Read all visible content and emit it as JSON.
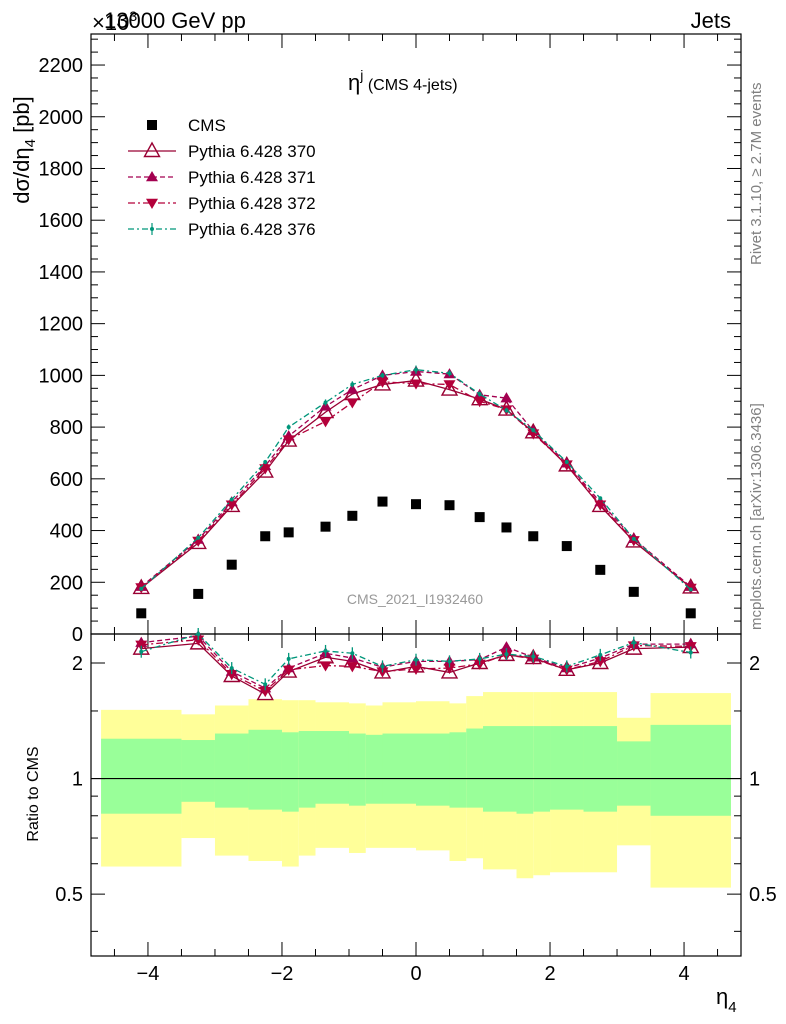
{
  "header": {
    "process": "13000 GeV pp",
    "channel": "Jets",
    "exponent": "×10",
    "exponent_power": "3"
  },
  "side_labels": {
    "rivet": "Rivet 3.1.10, ≥ 2.7M events",
    "mcplots": "mcplots.cern.ch [arXiv:1306.3436]"
  },
  "watermark": "CMS_2021_I1932460",
  "colors": {
    "cms": "#000000",
    "p370": "#990033",
    "p371": "#a30050",
    "p372": "#b3003a",
    "p376": "#00967a",
    "band_inner": "#99ff99",
    "band_outer": "#ffff99"
  },
  "chart_data": {
    "type": "line",
    "title_main": "η",
    "title_sup": "j",
    "title_rest": " (CMS 4-jets)",
    "ylabel": "dσ/dη",
    "ylabel_sub": "4",
    "ylabel_unit": " [pb]",
    "xlabel": "η",
    "xlabel_sub": "4",
    "ratio_ylabel": "Ratio to CMS",
    "xlim": [
      -4.85,
      4.85
    ],
    "ylim": [
      0,
      2320
    ],
    "ratio_ylim": [
      0.345,
      2.38
    ],
    "x_ticks": [
      -4,
      -2,
      0,
      2,
      4
    ],
    "x_tick_labels": [
      "−4",
      "−2",
      "0",
      "2",
      "4"
    ],
    "y_ticks": [
      0,
      200,
      400,
      600,
      800,
      1000,
      1200,
      1400,
      1600,
      1800,
      2000,
      2200
    ],
    "y_tick_labels": [
      "0",
      "200",
      "400",
      "600",
      "800",
      "1000",
      "1200",
      "1400",
      "1600",
      "1800",
      "2000",
      "2200"
    ],
    "ratio_ticks": [
      0.5,
      1,
      2
    ],
    "ratio_tick_labels": [
      "0.5",
      "1",
      "2"
    ],
    "bin_edges": [
      -4.7,
      -3.5,
      -3.0,
      -2.5,
      -2.0,
      -1.75,
      -1.5,
      -1.0,
      -0.75,
      -0.5,
      0.0,
      0.5,
      0.75,
      1.0,
      1.5,
      1.75,
      2.0,
      2.5,
      3.0,
      3.5,
      4.7
    ],
    "x": [
      -4.1,
      -3.25,
      -2.75,
      -2.25,
      -1.9,
      -1.35,
      -0.95,
      -0.5,
      0.0,
      0.5,
      0.95,
      1.35,
      1.75,
      2.25,
      2.75,
      3.25,
      4.1
    ],
    "series": [
      {
        "name": "CMS",
        "values": [
          80,
          155,
          268,
          378,
          393,
          415,
          457,
          512,
          502,
          498,
          452,
          412,
          378,
          340,
          248,
          163,
          80
        ]
      },
      {
        "name": "Pythia 6.428 370",
        "values": [
          178,
          352,
          495,
          628,
          748,
          858,
          928,
          965,
          980,
          945,
          908,
          868,
          780,
          652,
          495,
          358,
          180
        ]
      },
      {
        "name": "Pythia 6.428 371",
        "values": [
          183,
          365,
          510,
          650,
          765,
          880,
          945,
          1000,
          1015,
          1005,
          925,
          912,
          785,
          660,
          510,
          368,
          183
        ]
      },
      {
        "name": "Pythia 6.428 372",
        "values": [
          180,
          360,
          500,
          640,
          752,
          822,
          895,
          975,
          968,
          965,
          900,
          868,
          775,
          655,
          500,
          362,
          178
        ]
      },
      {
        "name": "Pythia 6.428 376",
        "values": [
          175,
          372,
          520,
          665,
          800,
          895,
          965,
          1000,
          1022,
          1008,
          928,
          865,
          788,
          665,
          525,
          368,
          172
        ]
      }
    ],
    "ratio_series": [
      {
        "name": "Pythia 6.428 370",
        "values": [
          2.18,
          2.25,
          1.85,
          1.66,
          1.9,
          2.07,
          2.02,
          1.89,
          1.96,
          1.89,
          2.0,
          2.1,
          2.06,
          1.92,
          2.0,
          2.18,
          2.2
        ]
      },
      {
        "name": "Pythia 6.428 371",
        "values": [
          2.26,
          2.35,
          1.9,
          1.72,
          1.94,
          2.12,
          2.06,
          1.95,
          2.02,
          2.02,
          2.04,
          2.2,
          2.07,
          1.94,
          2.06,
          2.24,
          2.24
        ]
      },
      {
        "name": "Pythia 6.428 372",
        "values": [
          2.23,
          2.3,
          1.87,
          1.69,
          1.92,
          1.97,
          1.96,
          1.9,
          1.93,
          1.94,
          1.99,
          2.1,
          2.05,
          1.92,
          2.02,
          2.22,
          2.21
        ]
      },
      {
        "name": "Pythia 6.428 376",
        "values": [
          2.14,
          2.38,
          1.94,
          1.76,
          2.05,
          2.15,
          2.12,
          1.96,
          2.04,
          2.02,
          2.05,
          2.11,
          2.08,
          1.96,
          2.1,
          2.26,
          2.13
        ]
      }
    ],
    "band_inner": [
      {
        "lo": 0.81,
        "hi": 1.27
      },
      {
        "lo": 0.87,
        "hi": 1.26
      },
      {
        "lo": 0.84,
        "hi": 1.31
      },
      {
        "lo": 0.83,
        "hi": 1.34
      },
      {
        "lo": 0.82,
        "hi": 1.32
      },
      {
        "lo": 0.84,
        "hi": 1.33
      },
      {
        "lo": 0.86,
        "hi": 1.33
      },
      {
        "lo": 0.85,
        "hi": 1.31
      },
      {
        "lo": 0.86,
        "hi": 1.3
      },
      {
        "lo": 0.86,
        "hi": 1.31
      },
      {
        "lo": 0.85,
        "hi": 1.31
      },
      {
        "lo": 0.84,
        "hi": 1.32
      },
      {
        "lo": 0.84,
        "hi": 1.35
      },
      {
        "lo": 0.82,
        "hi": 1.37
      },
      {
        "lo": 0.81,
        "hi": 1.37
      },
      {
        "lo": 0.82,
        "hi": 1.37
      },
      {
        "lo": 0.83,
        "hi": 1.37
      },
      {
        "lo": 0.82,
        "hi": 1.37
      },
      {
        "lo": 0.85,
        "hi": 1.25
      },
      {
        "lo": 0.8,
        "hi": 1.38
      }
    ],
    "band_outer": [
      {
        "lo": 0.59,
        "hi": 1.51
      },
      {
        "lo": 0.7,
        "hi": 1.47
      },
      {
        "lo": 0.63,
        "hi": 1.55
      },
      {
        "lo": 0.61,
        "hi": 1.61
      },
      {
        "lo": 0.59,
        "hi": 1.6
      },
      {
        "lo": 0.63,
        "hi": 1.6
      },
      {
        "lo": 0.66,
        "hi": 1.58
      },
      {
        "lo": 0.64,
        "hi": 1.57
      },
      {
        "lo": 0.66,
        "hi": 1.55
      },
      {
        "lo": 0.66,
        "hi": 1.58
      },
      {
        "lo": 0.65,
        "hi": 1.59
      },
      {
        "lo": 0.61,
        "hi": 1.57
      },
      {
        "lo": 0.62,
        "hi": 1.64
      },
      {
        "lo": 0.58,
        "hi": 1.68
      },
      {
        "lo": 0.55,
        "hi": 1.68
      },
      {
        "lo": 0.56,
        "hi": 1.68
      },
      {
        "lo": 0.57,
        "hi": 1.68
      },
      {
        "lo": 0.57,
        "hi": 1.68
      },
      {
        "lo": 0.67,
        "hi": 1.44
      },
      {
        "lo": 0.52,
        "hi": 1.67
      }
    ],
    "errors": [
      0,
      4,
      6,
      8,
      10,
      12,
      12,
      10,
      16,
      12,
      10,
      10,
      8,
      8,
      6,
      5,
      4
    ],
    "legend_position": "top-left",
    "grid": false
  }
}
